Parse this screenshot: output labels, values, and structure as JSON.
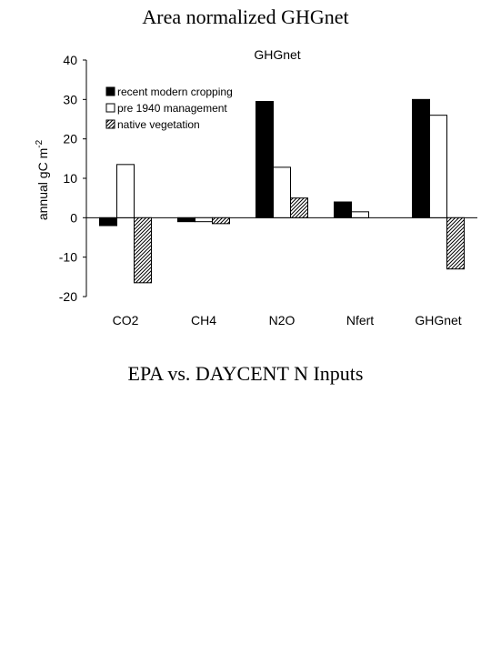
{
  "page": {
    "title": "Area normalized GHGnet",
    "section_title": "EPA vs. DAYCENT N Inputs"
  },
  "chart_data": {
    "type": "bar",
    "title": "GHGnet",
    "ylabel_text": "annual gC m",
    "ylabel_superscript": "-2",
    "ylim": [
      -20,
      40
    ],
    "yticks": [
      -20,
      -10,
      0,
      10,
      20,
      30,
      40
    ],
    "grid": false,
    "legend_position": "top-left",
    "categories": [
      "CO2",
      "CH4",
      "N2O",
      "Nfert",
      "GHGnet"
    ],
    "series": [
      {
        "name": "recent modern cropping",
        "values": [
          -2,
          -1,
          29.5,
          4,
          30
        ],
        "fill": "#000000"
      },
      {
        "name": "pre 1940 management",
        "values": [
          13.5,
          -1,
          12.8,
          1.5,
          26
        ],
        "fill": "#ffffff"
      },
      {
        "name": "native vegetation",
        "values": [
          -16.5,
          -1.5,
          5,
          null,
          -13
        ],
        "fill": "hatch"
      }
    ]
  }
}
